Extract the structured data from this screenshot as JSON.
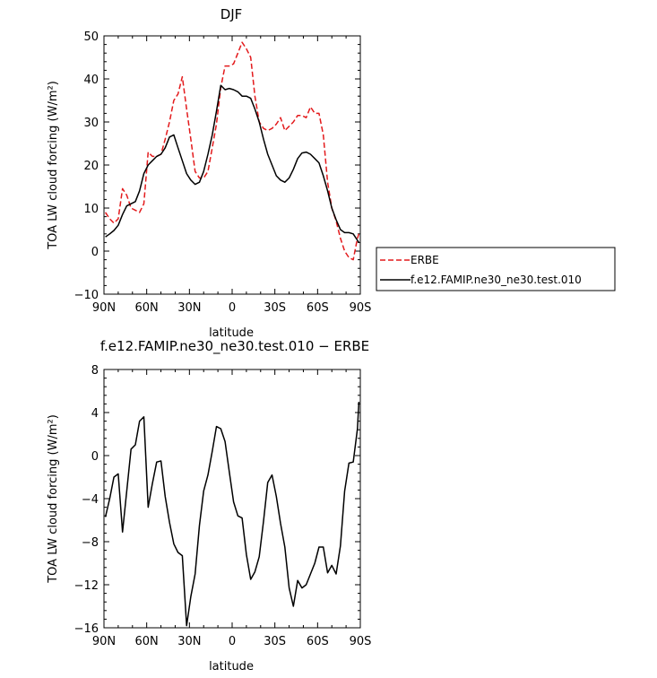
{
  "chart_data": [
    {
      "type": "line",
      "title": "DJF",
      "xlabel": "latitude",
      "ylabel": "TOA LW cloud forcing (W/m²)",
      "xlim": [
        90,
        -90
      ],
      "ylim": [
        -10,
        50
      ],
      "x_tick_values": [
        90,
        60,
        30,
        0,
        -30,
        -60,
        -90
      ],
      "x_tick_labels": [
        "90N",
        "60N",
        "30N",
        "0",
        "30S",
        "60S",
        "90S"
      ],
      "y_tick_values": [
        -10,
        0,
        10,
        20,
        30,
        40,
        50
      ],
      "y_tick_labels": [
        "−10",
        "0",
        "10",
        "20",
        "30",
        "40",
        "50"
      ],
      "grid": false,
      "legend_position": "outside-right",
      "series": [
        {
          "name": "ERBE",
          "color": "#e31a1c",
          "dash": "dashed",
          "x": [
            89,
            86,
            83,
            80,
            77,
            74,
            71,
            68,
            65,
            62,
            59,
            56,
            53,
            50,
            47,
            44,
            41,
            38,
            35,
            32,
            29,
            26,
            23,
            20,
            17,
            14,
            11,
            8,
            5,
            2,
            -1,
            -4,
            -7,
            -10,
            -13,
            -16,
            -19,
            -22,
            -25,
            -28,
            -31,
            -34,
            -37,
            -40,
            -43,
            -46,
            -49,
            -52,
            -55,
            -58,
            -61,
            -64,
            -67,
            -70,
            -73,
            -76,
            -79,
            -82,
            -85,
            -88,
            -89
          ],
          "y": [
            9,
            7.5,
            6.5,
            7.5,
            14.5,
            13,
            10,
            9.5,
            9,
            11,
            23,
            22,
            22,
            22.5,
            26,
            30,
            35,
            36.5,
            40.5,
            33,
            26,
            18.5,
            17,
            17,
            18.5,
            24,
            29.5,
            38,
            43,
            43,
            43.5,
            46,
            48.5,
            47,
            45,
            36,
            30,
            28.5,
            28,
            28.5,
            29.5,
            31,
            28,
            29,
            30,
            31.5,
            31.5,
            31,
            33.5,
            32,
            32,
            27,
            16,
            10,
            7,
            3,
            0,
            -1.5,
            -2,
            3,
            4
          ]
        },
        {
          "name": "f.e12.FAMIP.ne30_ne30.test.010",
          "color": "#000000",
          "dash": "solid",
          "x": [
            89,
            86,
            83,
            80,
            77,
            74,
            71,
            68,
            65,
            62,
            59,
            56,
            53,
            50,
            47,
            44,
            41,
            38,
            35,
            32,
            29,
            26,
            23,
            20,
            17,
            14,
            11,
            8,
            5,
            2,
            -1,
            -4,
            -7,
            -10,
            -13,
            -16,
            -19,
            -22,
            -25,
            -28,
            -31,
            -34,
            -37,
            -40,
            -43,
            -46,
            -49,
            -52,
            -55,
            -58,
            -61,
            -64,
            -67,
            -70,
            -73,
            -76,
            -79,
            -82,
            -85,
            -88,
            -89
          ],
          "y": [
            3.3,
            4,
            4.8,
            6,
            8.5,
            10.5,
            11,
            11.5,
            14,
            18,
            20,
            21,
            22,
            22.5,
            24,
            26.5,
            27,
            24,
            21,
            18,
            16.5,
            15.5,
            16,
            18.5,
            22.5,
            27,
            32.5,
            38.5,
            37.5,
            37.8,
            37.5,
            37,
            36,
            36,
            35.5,
            33,
            30,
            26,
            22.5,
            20,
            17.5,
            16.5,
            16,
            17,
            19,
            21.5,
            22.8,
            23,
            22.5,
            21.5,
            20.5,
            17.5,
            14,
            10,
            7.3,
            5,
            4.3,
            4.3,
            4,
            2.5,
            2
          ]
        }
      ]
    },
    {
      "type": "line",
      "title": "f.e12.FAMIP.ne30_ne30.test.010 − ERBE",
      "xlabel": "latitude",
      "ylabel": "TOA LW cloud forcing (W/m²)",
      "xlim": [
        90,
        -90
      ],
      "ylim": [
        -16,
        8
      ],
      "x_tick_values": [
        90,
        60,
        30,
        0,
        -30,
        -60,
        -90
      ],
      "x_tick_labels": [
        "90N",
        "60N",
        "30N",
        "0",
        "30S",
        "60S",
        "90S"
      ],
      "y_tick_values": [
        -16,
        -12,
        -8,
        -4,
        0,
        4,
        8
      ],
      "y_tick_labels": [
        "−16",
        "−12",
        "−8",
        "−4",
        "0",
        "4",
        "8"
      ],
      "grid": false,
      "series": [
        {
          "color": "#000000",
          "dash": "solid",
          "x": [
            89,
            86,
            83,
            80,
            77,
            74,
            71,
            68,
            65,
            62,
            59,
            56,
            53,
            50,
            47,
            44,
            41,
            38,
            35,
            32,
            29,
            26,
            23,
            20,
            17,
            14,
            11,
            8,
            5,
            2,
            -1,
            -4,
            -7,
            -10,
            -13,
            -16,
            -19,
            -22,
            -25,
            -28,
            -31,
            -34,
            -37,
            -40,
            -43,
            -46,
            -49,
            -52,
            -55,
            -58,
            -61,
            -64,
            -67,
            -70,
            -73,
            -76,
            -79,
            -82,
            -85,
            -88,
            -89
          ],
          "y": [
            -5.7,
            -4,
            -2,
            -1.7,
            -7.1,
            -3.3,
            0.6,
            1,
            3.2,
            3.6,
            -4.8,
            -2.6,
            -0.6,
            -0.5,
            -3.8,
            -6.2,
            -8.2,
            -9,
            -9.3,
            -15.8,
            -13.1,
            -11,
            -6.5,
            -3.3,
            -1.8,
            0.4,
            2.7,
            2.5,
            1.3,
            -1.5,
            -4.3,
            -5.6,
            -5.8,
            -9.2,
            -11.5,
            -10.8,
            -9.4,
            -6.1,
            -2.5,
            -1.8,
            -3.8,
            -6.3,
            -8.5,
            -12.3,
            -14,
            -11.6,
            -12.3,
            -12,
            -11,
            -10,
            -8.5,
            -8.5,
            -10.9,
            -10.2,
            -11,
            -8.4,
            -3.3,
            -0.7,
            -0.6,
            2.5,
            5
          ]
        }
      ]
    }
  ]
}
